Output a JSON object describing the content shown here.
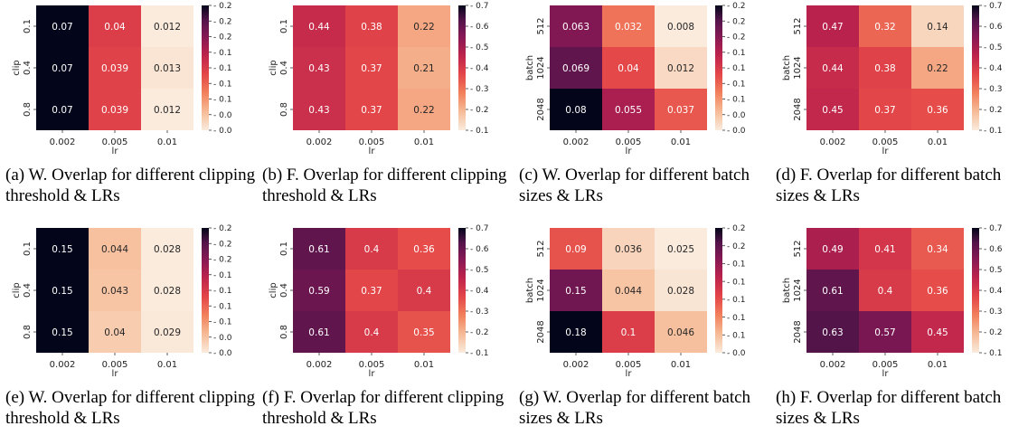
{
  "chart_data": [
    {
      "type": "heatmap",
      "panel": "a",
      "caption": "(a) W. Overlap for different clipping threshold & LRs",
      "xlabel": "lr",
      "ylabel": "clip",
      "x_categories": [
        "0.002",
        "0.005",
        "0.01"
      ],
      "y_categories": [
        "0.1",
        "0.4",
        "0.8"
      ],
      "values": [
        [
          0.07,
          0.04,
          0.012
        ],
        [
          0.07,
          0.039,
          0.013
        ],
        [
          0.07,
          0.039,
          0.012
        ]
      ],
      "value_labels": [
        [
          "0.07",
          "0.04",
          "0.012"
        ],
        [
          "0.07",
          "0.039",
          "0.013"
        ],
        [
          "0.07",
          "0.039",
          "0.012"
        ]
      ],
      "colorbar_ticks": [
        "0.2",
        "0.2",
        "0.2",
        "0.1",
        "0.1",
        "0.1",
        "0.1",
        "0.0",
        "0.0"
      ],
      "vmin": 0.012,
      "vmax": 0.07
    },
    {
      "type": "heatmap",
      "panel": "b",
      "caption": "(b) F. Overlap for different clipping threshold & LRs",
      "xlabel": "lr",
      "ylabel": "clip",
      "x_categories": [
        "0.002",
        "0.005",
        "0.01"
      ],
      "y_categories": [
        "0.1",
        "0.4",
        "0.8"
      ],
      "values": [
        [
          0.44,
          0.38,
          0.22
        ],
        [
          0.43,
          0.37,
          0.21
        ],
        [
          0.43,
          0.37,
          0.22
        ]
      ],
      "value_labels": [
        [
          "0.44",
          "0.38",
          "0.22"
        ],
        [
          "0.43",
          "0.37",
          "0.21"
        ],
        [
          "0.43",
          "0.37",
          "0.22"
        ]
      ],
      "colorbar_ticks": [
        "0.7",
        "0.6",
        "0.5",
        "0.4",
        "0.3",
        "0.2",
        "0.1"
      ],
      "vmin": 0.1,
      "vmax": 0.7
    },
    {
      "type": "heatmap",
      "panel": "c",
      "caption": "(c) W. Overlap for different batch sizes & LRs",
      "xlabel": "lr",
      "ylabel": "batch",
      "x_categories": [
        "0.002",
        "0.005",
        "0.01"
      ],
      "y_categories": [
        "512",
        "1024",
        "2048"
      ],
      "values": [
        [
          0.063,
          0.032,
          0.008
        ],
        [
          0.069,
          0.04,
          0.012
        ],
        [
          0.08,
          0.055,
          0.037
        ]
      ],
      "value_labels": [
        [
          "0.063",
          "0.032",
          "0.008"
        ],
        [
          "0.069",
          "0.04",
          "0.012"
        ],
        [
          "0.08",
          "0.055",
          "0.037"
        ]
      ],
      "colorbar_ticks": [
        "0.2",
        "0.2",
        "0.2",
        "0.1",
        "0.1",
        "0.1",
        "0.1",
        "0.0",
        "0.0"
      ],
      "vmin": 0.008,
      "vmax": 0.08
    },
    {
      "type": "heatmap",
      "panel": "d",
      "caption": "(d) F. Overlap for different batch sizes & LRs",
      "xlabel": "lr",
      "ylabel": "batch",
      "x_categories": [
        "0.002",
        "0.005",
        "0.01"
      ],
      "y_categories": [
        "512",
        "1024",
        "2048"
      ],
      "values": [
        [
          0.47,
          0.32,
          0.14
        ],
        [
          0.44,
          0.38,
          0.22
        ],
        [
          0.45,
          0.37,
          0.36
        ]
      ],
      "value_labels": [
        [
          "0.47",
          "0.32",
          "0.14"
        ],
        [
          "0.44",
          "0.38",
          "0.22"
        ],
        [
          "0.45",
          "0.37",
          "0.36"
        ]
      ],
      "colorbar_ticks": [
        "0.7",
        "0.6",
        "0.5",
        "0.4",
        "0.3",
        "0.2",
        "0.1"
      ],
      "vmin": 0.1,
      "vmax": 0.7
    },
    {
      "type": "heatmap",
      "panel": "e",
      "caption": "(e) W. Overlap for different clipping threshold & LRs",
      "xlabel": "lr",
      "ylabel": "clip",
      "x_categories": [
        "0.002",
        "0.005",
        "0.01"
      ],
      "y_categories": [
        "0.1",
        "0.4",
        "0.8"
      ],
      "values": [
        [
          0.15,
          0.044,
          0.028
        ],
        [
          0.15,
          0.043,
          0.028
        ],
        [
          0.15,
          0.04,
          0.029
        ]
      ],
      "value_labels": [
        [
          "0.15",
          "0.044",
          "0.028"
        ],
        [
          "0.15",
          "0.043",
          "0.028"
        ],
        [
          "0.15",
          "0.04",
          "0.029"
        ]
      ],
      "colorbar_ticks": [
        "0.2",
        "0.2",
        "0.2",
        "0.1",
        "0.1",
        "0.1",
        "0.1",
        "0.0",
        "0.0"
      ],
      "vmin": 0.028,
      "vmax": 0.15
    },
    {
      "type": "heatmap",
      "panel": "f",
      "caption": "(f) F. Overlap for different clipping threshold & LRs",
      "xlabel": "lr",
      "ylabel": "clip",
      "x_categories": [
        "0.002",
        "0.005",
        "0.01"
      ],
      "y_categories": [
        "0.1",
        "0.4",
        "0.8"
      ],
      "values": [
        [
          0.61,
          0.4,
          0.36
        ],
        [
          0.59,
          0.37,
          0.4
        ],
        [
          0.61,
          0.4,
          0.35
        ]
      ],
      "value_labels": [
        [
          "0.61",
          "0.4",
          "0.36"
        ],
        [
          "0.59",
          "0.37",
          "0.4"
        ],
        [
          "0.61",
          "0.4",
          "0.35"
        ]
      ],
      "colorbar_ticks": [
        "0.7",
        "0.6",
        "0.5",
        "0.4",
        "0.3",
        "0.2",
        "0.1"
      ],
      "vmin": 0.1,
      "vmax": 0.7
    },
    {
      "type": "heatmap",
      "panel": "g",
      "caption": "(g) W. Overlap for different batch sizes & LRs",
      "xlabel": "lr",
      "ylabel": "batch",
      "x_categories": [
        "0.002",
        "0.005",
        "0.01"
      ],
      "y_categories": [
        "512",
        "1024",
        "2048"
      ],
      "values": [
        [
          0.09,
          0.036,
          0.025
        ],
        [
          0.15,
          0.044,
          0.028
        ],
        [
          0.18,
          0.1,
          0.046
        ]
      ],
      "value_labels": [
        [
          "0.09",
          "0.036",
          "0.025"
        ],
        [
          "0.15",
          "0.044",
          "0.028"
        ],
        [
          "0.18",
          "0.1",
          "0.046"
        ]
      ],
      "colorbar_ticks": [
        "0.2",
        "0.2",
        "0.1",
        "0.1",
        "0.1",
        "0.1",
        "0.1",
        "0.0"
      ],
      "vmin": 0.025,
      "vmax": 0.18
    },
    {
      "type": "heatmap",
      "panel": "h",
      "caption": "(h) F. Overlap for different batch sizes & LRs",
      "xlabel": "lr",
      "ylabel": "batch",
      "x_categories": [
        "0.002",
        "0.005",
        "0.01"
      ],
      "y_categories": [
        "512",
        "1024",
        "2048"
      ],
      "values": [
        [
          0.49,
          0.41,
          0.34
        ],
        [
          0.61,
          0.4,
          0.36
        ],
        [
          0.63,
          0.57,
          0.45
        ]
      ],
      "value_labels": [
        [
          "0.49",
          "0.41",
          "0.34"
        ],
        [
          "0.61",
          "0.4",
          "0.36"
        ],
        [
          "0.63",
          "0.57",
          "0.45"
        ]
      ],
      "colorbar_ticks": [
        "0.7",
        "0.6",
        "0.5",
        "0.4",
        "0.3",
        "0.2",
        "0.1"
      ],
      "vmin": 0.1,
      "vmax": 0.7
    }
  ]
}
